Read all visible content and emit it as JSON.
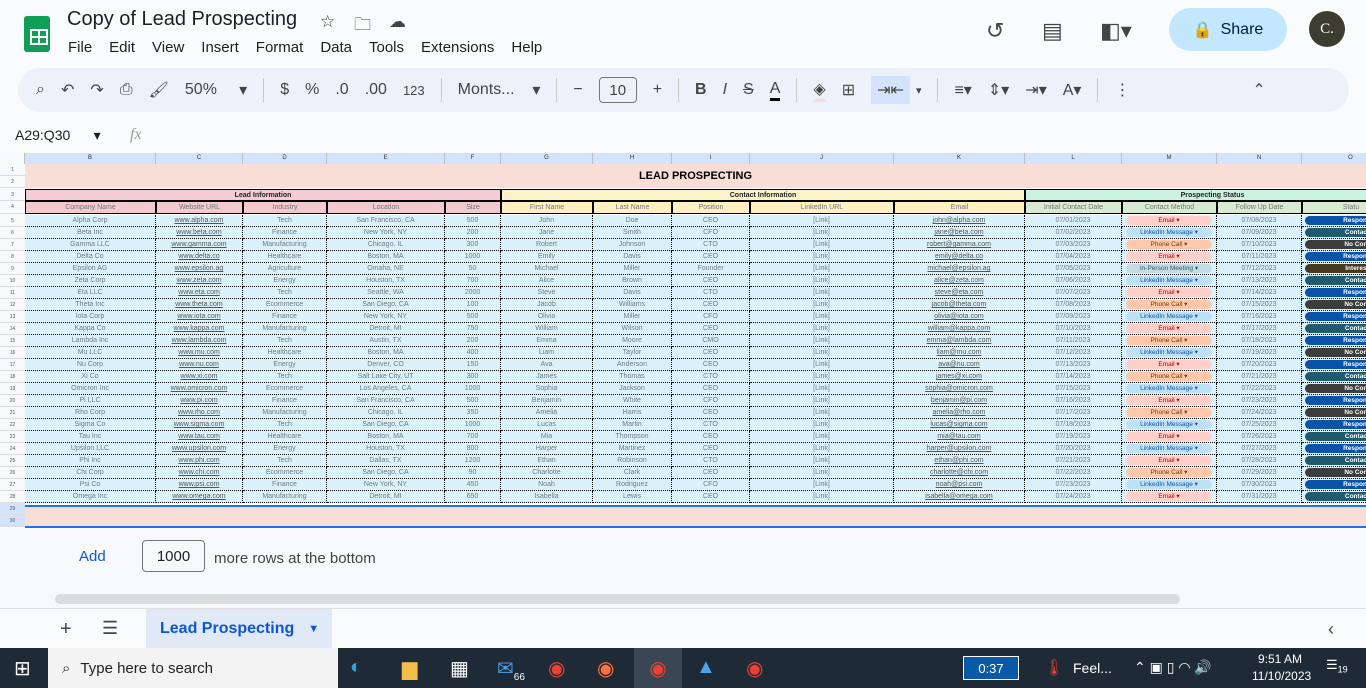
{
  "app": {
    "title": "Copy of Lead Prospecting",
    "menu": [
      "File",
      "Edit",
      "View",
      "Insert",
      "Format",
      "Data",
      "Tools",
      "Extensions",
      "Help"
    ],
    "share_label": "Share",
    "avatar_initial": "C."
  },
  "toolbar": {
    "zoom": "50%",
    "currency": "$",
    "percent": "%",
    "dec_decrease": ".0",
    "dec_increase": ".00",
    "number_format": "123",
    "font": "Monts...",
    "font_size": "10",
    "bold": "B",
    "italic": "I",
    "text_color_label": "A"
  },
  "formula_bar": {
    "name_box": "A29:Q30",
    "fx": "fx"
  },
  "columns": [
    "B",
    "C",
    "D",
    "E",
    "F",
    "G",
    "H",
    "I",
    "J",
    "K",
    "L",
    "M",
    "N",
    "O"
  ],
  "sheet": {
    "title": "LEAD PROSPECTING",
    "groups": [
      "Lead Information",
      "Contact Information",
      "Prospecting Status"
    ],
    "headers": [
      "Company Name",
      "Website URL",
      "Industry",
      "Location",
      "Size",
      "First Name",
      "Last Name",
      "Position",
      "LinkedIn URL",
      "Email",
      "Initial Contact Date",
      "Contact Method",
      "Follow Up Date",
      "Statu"
    ],
    "rows": [
      [
        "Alpha Corp",
        "www.alpha.com",
        "Tech",
        "San Francisco, CA",
        "500",
        "John",
        "Doe",
        "CEO",
        "[Link]",
        "john@alpha.com",
        "07/01/2023",
        "Email",
        "07/08/2023",
        "Respond"
      ],
      [
        "Beta Inc",
        "www.beta.com",
        "Finance",
        "New York, NY",
        "200",
        "Jane",
        "Smith",
        "CFO",
        "[Link]",
        "jane@beta.com",
        "07/02/2023",
        "LinkedIn Message",
        "07/09/2023",
        "Contact"
      ],
      [
        "Gamma LLC",
        "www.gamma.com",
        "Manufacturing",
        "Chicago, IL",
        "300",
        "Robert",
        "Johnson",
        "CTO",
        "[Link]",
        "robert@gamma.com",
        "07/03/2023",
        "Phone Call",
        "07/10/2023",
        "No Cont"
      ],
      [
        "Delta Co",
        "www.delta.co",
        "Healthcare",
        "Boston, MA",
        "1000",
        "Emily",
        "Davis",
        "CEO",
        "[Link]",
        "emily@delta.co",
        "07/04/2023",
        "Email",
        "07/11/2023",
        "Respond"
      ],
      [
        "Epsilon AG",
        "www.epsilon.ag",
        "Agriculture",
        "Omaha, NE",
        "50",
        "Michael",
        "Miller",
        "Founder",
        "[Link]",
        "michael@epsilon.ag",
        "07/05/2023",
        "In-Person Meeting",
        "07/12/2023",
        "Interest"
      ],
      [
        "Zeta Corp",
        "www.zeta.com",
        "Energy",
        "Houston, TX",
        "700",
        "Alice",
        "Brown",
        "CEO",
        "[Link]",
        "alice@zeta.com",
        "07/06/2023",
        "LinkedIn Message",
        "07/13/2023",
        "Contact"
      ],
      [
        "Eta LLC",
        "www.eta.com",
        "Tech",
        "Seattle, WA",
        "2000",
        "Steve",
        "Davis",
        "CTO",
        "[Link]",
        "steve@eta.com",
        "07/07/2023",
        "Email",
        "07/14/2023",
        "Respond"
      ],
      [
        "Theta Inc",
        "www.theta.com",
        "Ecommerce",
        "San Diego, CA",
        "100",
        "Jacob",
        "Williams",
        "CEO",
        "[Link]",
        "jacob@theta.com",
        "07/08/2023",
        "Phone Call",
        "07/15/2023",
        "No Cont"
      ],
      [
        "Iota Corp",
        "www.iota.com",
        "Finance",
        "New York, NY",
        "500",
        "Olivia",
        "Miller",
        "CFO",
        "[Link]",
        "olivia@iota.com",
        "07/09/2023",
        "LinkedIn Message",
        "07/16/2023",
        "Respond"
      ],
      [
        "Kappa Co",
        "www.kappa.com",
        "Manufacturing",
        "Detroit, MI",
        "750",
        "William",
        "Wilson",
        "CEO",
        "[Link]",
        "william@kappa.com",
        "07/10/2023",
        "Email",
        "07/17/2023",
        "Contact"
      ],
      [
        "Lambda Inc",
        "www.lambda.com",
        "Tech",
        "Austin, TX",
        "200",
        "Emma",
        "Moore",
        "CMO",
        "[Link]",
        "emma@lambda.com",
        "07/11/2023",
        "Phone Call",
        "07/18/2023",
        "Respond"
      ],
      [
        "Mu LLC",
        "www.mu.com",
        "Healthcare",
        "Boston, MA",
        "400",
        "Liam",
        "Taylor",
        "CEO",
        "[Link]",
        "liam@mu.com",
        "07/12/2023",
        "LinkedIn Message",
        "07/19/2023",
        "No Cont"
      ],
      [
        "Nu Corp",
        "www.nu.com",
        "Energy",
        "Denver, CO",
        "150",
        "Ava",
        "Anderson",
        "CEO",
        "[Link]",
        "ava@nu.com",
        "07/13/2023",
        "Email",
        "07/20/2023",
        "Respond"
      ],
      [
        "Xi Co",
        "www.xi.com",
        "Tech",
        "Salt Lake City, UT",
        "300",
        "James",
        "Thomas",
        "CTO",
        "[Link]",
        "james@xi.com",
        "07/14/2023",
        "Phone Call",
        "07/21/2023",
        "Contact"
      ],
      [
        "Omicron Inc",
        "www.omicron.com",
        "Ecommerce",
        "Los Angeles, CA",
        "1000",
        "Sophia",
        "Jackson",
        "CEO",
        "[Link]",
        "sophia@omicron.com",
        "07/15/2023",
        "LinkedIn Message",
        "07/22/2023",
        "No Cont"
      ],
      [
        "Pi LLC",
        "www.pi.com",
        "Finance",
        "San Francisco, CA",
        "500",
        "Benjamin",
        "White",
        "CFO",
        "[Link]",
        "benjamin@pi.com",
        "07/16/2023",
        "Email",
        "07/23/2023",
        "Respond"
      ],
      [
        "Rho Corp",
        "www.rho.com",
        "Manufacturing",
        "Chicago, IL",
        "350",
        "Amelia",
        "Harris",
        "CEO",
        "[Link]",
        "amelia@rho.com",
        "07/17/2023",
        "Phone Call",
        "07/24/2023",
        "No Cont"
      ],
      [
        "Sigma Co",
        "www.sigma.com",
        "Tech",
        "San Diego, CA",
        "1000",
        "Lucas",
        "Martin",
        "CTO",
        "[Link]",
        "lucas@sigma.com",
        "07/18/2023",
        "LinkedIn Message",
        "07/25/2023",
        "Respond"
      ],
      [
        "Tau Inc",
        "www.tau.com",
        "Healthcare",
        "Boston, MA",
        "700",
        "Mia",
        "Thompson",
        "CEO",
        "[Link]",
        "mia@tau.com",
        "07/19/2023",
        "Email",
        "07/26/2023",
        "Contact"
      ],
      [
        "Upsilon LLC",
        "www.upsilon.com",
        "Energy",
        "Houston, TX",
        "800",
        "Harper",
        "Martinez",
        "CEO",
        "[Link]",
        "harper@upsilon.com",
        "07/20/2023",
        "LinkedIn Message",
        "07/27/2023",
        "Respond"
      ],
      [
        "Phi Inc",
        "www.phi.com",
        "Tech",
        "Dallas, TX",
        "1200",
        "Ethan",
        "Robinson",
        "CTO",
        "[Link]",
        "ethan@phi.com",
        "07/21/2023",
        "Email",
        "07/28/2023",
        "Contact"
      ],
      [
        "Chi Corp",
        "www.chi.com",
        "Ecommerce",
        "San Diego, CA",
        "90",
        "Charlotte",
        "Clark",
        "CEO",
        "[Link]",
        "charlotte@chi.com",
        "07/22/2023",
        "Phone Call",
        "07/29/2023",
        "No Cont"
      ],
      [
        "Psi Co",
        "www.psi.com",
        "Finance",
        "New York, NY",
        "450",
        "Noah",
        "Rodriguez",
        "CFO",
        "[Link]",
        "noah@psi.com",
        "07/23/2023",
        "LinkedIn Message",
        "07/30/2023",
        "Respond"
      ],
      [
        "Omega Inc",
        "www.omega.com",
        "Manufacturing",
        "Detroit, MI",
        "650",
        "Isabella",
        "Lewis",
        "CEO",
        "[Link]",
        "isabella@omega.com",
        "07/24/2023",
        "Email",
        "07/31/2023",
        "Contact"
      ]
    ]
  },
  "colors": {
    "title_bg": "#f9ded8",
    "lead_header": "#f4cbd6",
    "contact_header": "#fdf3c8",
    "status_header": "#c9f2e0",
    "row_bg": "#d9f2fb",
    "selection": "#1a73e8",
    "method": {
      "Email": [
        "#ffcfc9",
        "#b10202"
      ],
      "LinkedIn Message": [
        "#bfe1f6",
        "#0a53a8"
      ],
      "Phone Call": [
        "#ffc8aa",
        "#753800"
      ],
      "In-Person Meeting": [
        "#c6dbe1",
        "#215a6c"
      ]
    },
    "status": {
      "Respond": "#0a53a8",
      "Contact": "#215a6c",
      "No Cont": "#3d3d3d",
      "Interest": "#473821"
    }
  },
  "add_rows": {
    "button": "Add",
    "count": "1000",
    "suffix": "more rows at the bottom"
  },
  "sheet_tabs": [
    "Lead Prospecting"
  ],
  "taskbar": {
    "search_placeholder": "Type here to search",
    "mail_badge": "66",
    "timer": "0:37",
    "weather": "Feel...",
    "time": "9:51 AM",
    "date": "11/10/2023",
    "notifications": "19"
  }
}
